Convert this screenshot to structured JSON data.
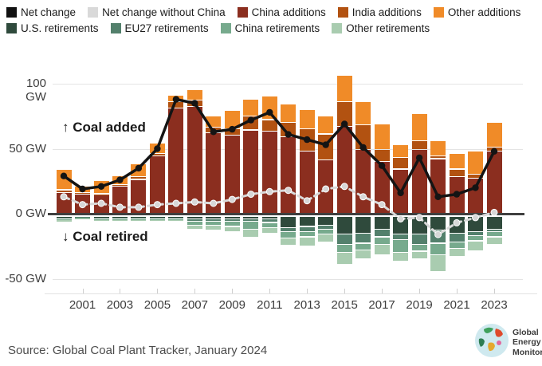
{
  "legend": {
    "rows": [
      [
        {
          "label": "Net change",
          "color": "#111111"
        },
        {
          "label": "Net change without China",
          "color": "#d9d9d9"
        },
        {
          "label": "China additions",
          "color": "#8b2e1f"
        },
        {
          "label": "India additions",
          "color": "#b25211"
        },
        {
          "label": "Other additions",
          "color": "#f08b28"
        }
      ],
      [
        {
          "label": "U.S. retirements",
          "color": "#2f4a3c"
        },
        {
          "label": "EU27 retirements",
          "color": "#53806c"
        },
        {
          "label": "China retirements",
          "color": "#77aa8d"
        },
        {
          "label": "Other retirements",
          "color": "#a9ccb0"
        }
      ]
    ]
  },
  "annotations": {
    "added": "↑ Coal added",
    "retired": "↓ Coal retired"
  },
  "footer": {
    "source": "Source: Global Coal Plant Tracker, January 2024",
    "logo_lines": [
      "Global",
      "Energy",
      "Monitor"
    ]
  },
  "chart_data": {
    "type": "bar",
    "stacked": true,
    "unit": "GW",
    "x": [
      2000,
      2001,
      2002,
      2003,
      2004,
      2005,
      2006,
      2007,
      2008,
      2009,
      2010,
      2011,
      2012,
      2013,
      2014,
      2015,
      2016,
      2017,
      2018,
      2019,
      2020,
      2021,
      2022,
      2023
    ],
    "series": [
      {
        "name": "China additions",
        "group": "additions",
        "color": "#8b2e1f",
        "values": [
          16,
          15,
          14,
          21,
          26,
          44,
          81,
          82,
          62,
          60,
          64,
          63,
          59,
          48,
          41,
          67,
          49,
          40,
          34,
          49,
          42,
          28,
          27,
          48
        ]
      },
      {
        "name": "India additions",
        "group": "additions",
        "color": "#b25211",
        "values": [
          2,
          1,
          1,
          1,
          2,
          2,
          5,
          5,
          4,
          5,
          11,
          9,
          11,
          17,
          20,
          19,
          19,
          9,
          9,
          7,
          2,
          6,
          3,
          3
        ]
      },
      {
        "name": "Other additions",
        "group": "additions",
        "color": "#f08b28",
        "values": [
          16,
          5,
          10,
          7,
          10,
          8,
          5,
          8,
          9,
          14,
          13,
          18,
          14,
          15,
          14,
          20,
          18,
          20,
          10,
          21,
          12,
          12,
          18,
          19
        ]
      },
      {
        "name": "U.S. retirements",
        "group": "retirements",
        "color": "#2f4a3c",
        "values": [
          -1,
          -0.5,
          -1,
          -1,
          -1,
          -1,
          -1,
          -2,
          -2,
          -2,
          -2,
          -2,
          -9,
          -8,
          -7,
          -14,
          -13,
          -10,
          -14,
          -14,
          -11,
          -13,
          -12,
          -10
        ]
      },
      {
        "name": "EU27 retirements",
        "group": "retirements",
        "color": "#53806c",
        "values": [
          -1,
          -0.5,
          -1,
          -1,
          -1,
          -1,
          -1,
          -2,
          -2,
          -2,
          -2,
          -3,
          -3,
          -4,
          -3,
          -8,
          -8,
          -6,
          -4,
          -8,
          -10,
          -7,
          -3,
          -2
        ]
      },
      {
        "name": "China retirements",
        "group": "retirements",
        "color": "#77aa8d",
        "values": [
          -1,
          -0.5,
          -1,
          -0.5,
          -0.5,
          -1,
          -0.5,
          -3,
          -3,
          -4,
          -6,
          -4,
          -5,
          -4,
          -4,
          -6,
          -5,
          -6,
          -10,
          -5,
          -9,
          -5,
          -4,
          -4
        ]
      },
      {
        "name": "Other retirements",
        "group": "retirements",
        "color": "#a9ccb0",
        "values": [
          -2,
          -0.5,
          -1,
          -0.5,
          -0.5,
          -1,
          -1,
          -3,
          -4,
          -4,
          -6.5,
          -4.5,
          -5.5,
          -7,
          -6,
          -9,
          -7,
          -8,
          -7,
          -6,
          -13,
          -6,
          -8,
          -6
        ]
      }
    ],
    "lines": [
      {
        "name": "Net change",
        "color": "#141414",
        "style": "solid",
        "values": [
          29,
          19,
          21,
          26,
          35,
          50,
          88,
          85,
          63,
          65,
          72,
          78,
          61,
          57,
          53,
          69,
          51,
          37,
          16,
          43,
          13,
          15,
          20,
          48
        ]
      },
      {
        "name": "Net change without China",
        "color": "#d9d9d9",
        "style": "dashed",
        "values": [
          13,
          7,
          8,
          5,
          5,
          7,
          8,
          9,
          8,
          11,
          15,
          17,
          18,
          10,
          19,
          21,
          13,
          7,
          -4,
          -3,
          -16,
          -7,
          -3,
          1
        ]
      }
    ],
    "yticks": [
      {
        "value": 100,
        "label": "100 GW"
      },
      {
        "value": 50,
        "label": "50 GW"
      },
      {
        "value": 0,
        "label": "0 GW"
      },
      {
        "value": -50,
        "label": "-50 GW"
      }
    ],
    "xticks": [
      2001,
      2003,
      2005,
      2007,
      2009,
      2011,
      2013,
      2015,
      2017,
      2019,
      2021,
      2023
    ],
    "ylim": [
      -55,
      110
    ],
    "grid": true,
    "legend_position": "top"
  }
}
